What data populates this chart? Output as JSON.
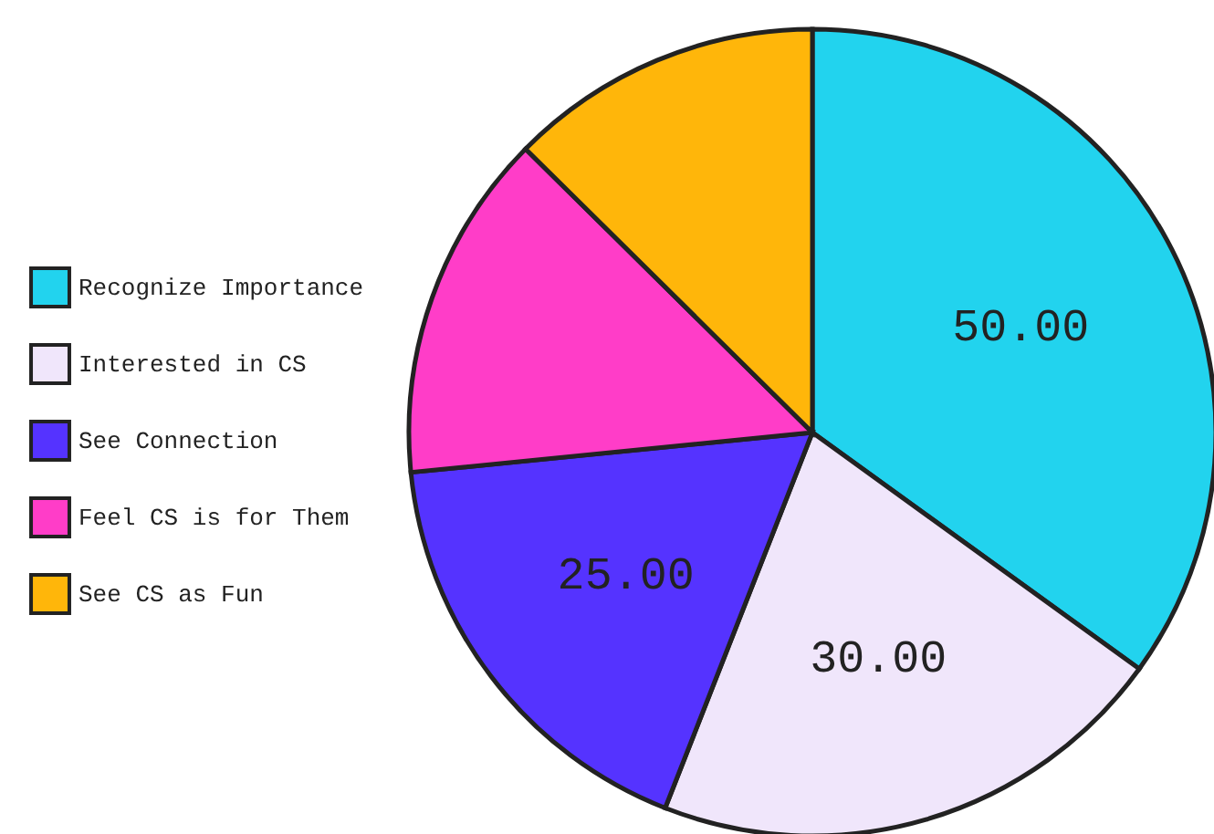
{
  "chart_data": {
    "type": "pie",
    "categories": [
      "Recognize Importance",
      "Interested in CS",
      "See Connection",
      "Feel CS is for Them",
      "See CS as Fun"
    ],
    "values": [
      50,
      30,
      25,
      20,
      18
    ],
    "value_labels": [
      "50.00",
      "30.00",
      "25.00",
      null,
      null
    ],
    "colors": [
      "#22d3ee",
      "#f0e6fb",
      "#5533ff",
      "#ff3dc8",
      "#ffb60a"
    ],
    "legend": "left"
  }
}
